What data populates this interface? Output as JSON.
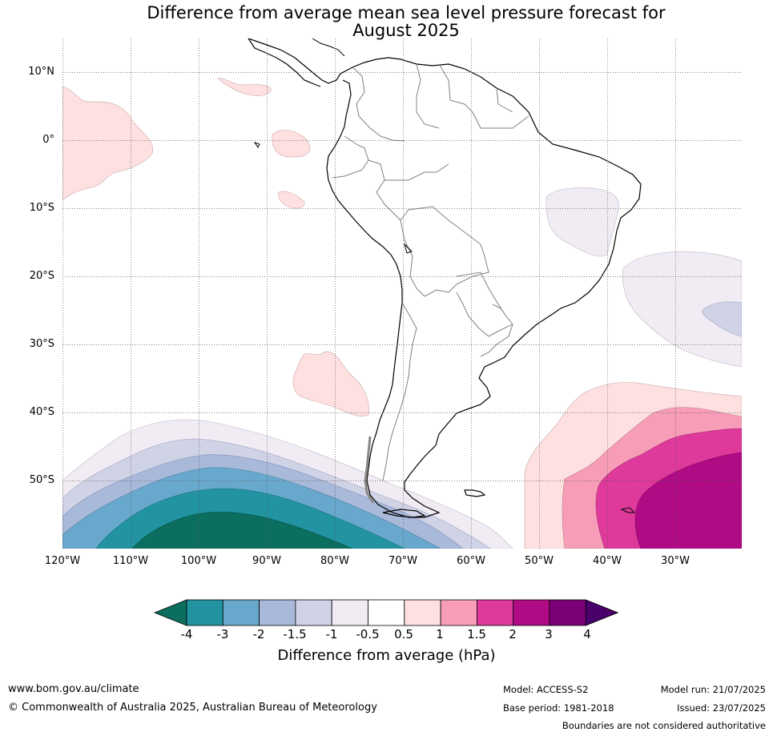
{
  "title_line1": "Difference from average mean sea level pressure forecast for",
  "title_line2": "August 2025",
  "lat_labels": [
    "10°N",
    "0°",
    "10°S",
    "20°S",
    "30°S",
    "40°S",
    "50°S"
  ],
  "lon_labels": [
    "120°W",
    "110°W",
    "100°W",
    "90°W",
    "80°W",
    "70°W",
    "60°W",
    "50°W",
    "40°W",
    "30°W"
  ],
  "colorbar": {
    "title": "Difference from average (hPa)",
    "ticks": [
      "-4",
      "-3",
      "-2",
      "-1.5",
      "-1",
      "-0.5",
      "0.5",
      "1",
      "1.5",
      "2",
      "3",
      "4"
    ],
    "colors": [
      "#0b6e5e",
      "#2293a0",
      "#68a8cc",
      "#a9b9da",
      "#d0d2e6",
      "#f1ecf3",
      "#ffffff",
      "#fde0df",
      "#f79db7",
      "#df3a9b",
      "#b00b85",
      "#7b0078",
      "#4a006a"
    ]
  },
  "footer": {
    "website": "www.bom.gov.au/climate",
    "copyright": "© Commonwealth of Australia 2025, Australian Bureau of Meteorology",
    "model": "Model: ACCESS-S2",
    "base_period": "Base period: 1981-2018",
    "model_run": "Model run: 21/07/2025",
    "issued": "Issued: 23/07/2025",
    "disclaimer": "Boundaries are not considered authoritative"
  }
}
